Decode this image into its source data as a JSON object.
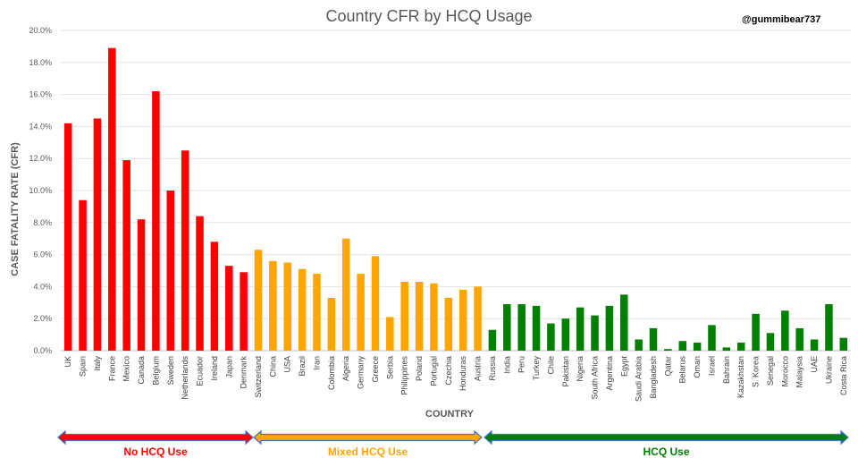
{
  "watermark": "@gummibear737",
  "chart_data": {
    "type": "bar",
    "title": "Country CFR by HCQ Usage",
    "xlabel": "COUNTRY",
    "ylabel": "CASE FATALITY RATE (CFR)",
    "ylim": [
      0,
      20
    ],
    "yticks": [
      "0.0%",
      "2.0%",
      "4.0%",
      "6.0%",
      "8.0%",
      "10.0%",
      "12.0%",
      "14.0%",
      "16.0%",
      "18.0%",
      "20.0%"
    ],
    "grid": true,
    "groups": [
      {
        "name": "No HCQ Use",
        "color": "#ff0000",
        "categories": [
          "UK",
          "Spain",
          "Italy",
          "France",
          "Mexico",
          "Canada",
          "Belgium",
          "Sweden",
          "Netherlands",
          "Ecuador",
          "Ireland",
          "Japan",
          "Denmark"
        ],
        "values": [
          14.2,
          9.4,
          14.5,
          18.9,
          11.9,
          8.2,
          16.2,
          10.0,
          12.5,
          8.4,
          6.8,
          5.3,
          4.9
        ]
      },
      {
        "name": "Mixed HCQ Use",
        "color": "#ffa500",
        "categories": [
          "Switzerland",
          "China",
          "USA",
          "Brazil",
          "Iran",
          "Colombia",
          "Algeria",
          "Germany",
          "Greece",
          "Serbia",
          "Philippines",
          "Poland",
          "Portugal",
          "Czechia",
          "Honduras",
          "Austria"
        ],
        "values": [
          6.3,
          5.6,
          5.5,
          5.1,
          4.8,
          3.3,
          7.0,
          4.8,
          5.9,
          2.1,
          4.3,
          4.3,
          4.2,
          3.3,
          3.8,
          4.0
        ]
      },
      {
        "name": "HCQ Use",
        "color": "#008000",
        "categories": [
          "Russia",
          "India",
          "Peru",
          "Turkey",
          "Chile",
          "Pakistan",
          "Nigeria",
          "South Africa",
          "Argentina",
          "Egypt",
          "Saudi Arabia",
          "Bangladesh",
          "Qatar",
          "Belarus",
          "Oman",
          "Israel",
          "Bahrain",
          "Kazakhstan",
          "S. Korea",
          "Senegal",
          "Morocco",
          "Malaysia",
          "UAE",
          "Ukraine",
          "Costa Rica"
        ],
        "values": [
          1.3,
          2.9,
          2.9,
          2.8,
          1.7,
          2.0,
          2.7,
          2.2,
          2.8,
          3.5,
          0.7,
          1.4,
          0.1,
          0.6,
          0.5,
          1.6,
          0.2,
          0.5,
          2.3,
          1.1,
          2.5,
          1.4,
          0.7,
          2.9,
          0.8
        ]
      }
    ]
  }
}
